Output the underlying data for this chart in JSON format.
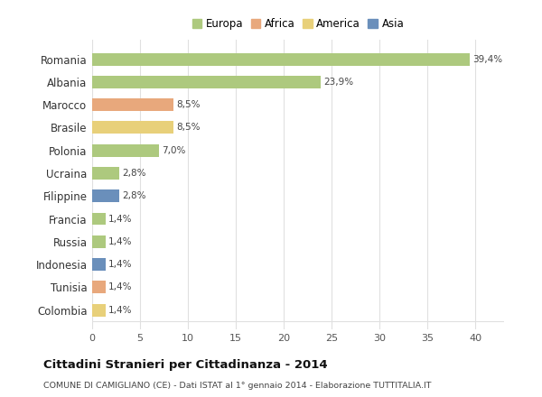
{
  "countries": [
    "Romania",
    "Albania",
    "Marocco",
    "Brasile",
    "Polonia",
    "Ucraina",
    "Filippine",
    "Francia",
    "Russia",
    "Indonesia",
    "Tunisia",
    "Colombia"
  ],
  "values": [
    39.4,
    23.9,
    8.5,
    8.5,
    7.0,
    2.8,
    2.8,
    1.4,
    1.4,
    1.4,
    1.4,
    1.4
  ],
  "labels": [
    "39,4%",
    "23,9%",
    "8,5%",
    "8,5%",
    "7,0%",
    "2,8%",
    "2,8%",
    "1,4%",
    "1,4%",
    "1,4%",
    "1,4%",
    "1,4%"
  ],
  "colors": [
    "#adc97e",
    "#adc97e",
    "#e8a87c",
    "#e8d07a",
    "#adc97e",
    "#adc97e",
    "#6a8fbb",
    "#adc97e",
    "#adc97e",
    "#6a8fbb",
    "#e8a87c",
    "#e8d07a"
  ],
  "legend_labels": [
    "Europa",
    "Africa",
    "America",
    "Asia"
  ],
  "legend_colors": [
    "#adc97e",
    "#e8a87c",
    "#e8d07a",
    "#6a8fbb"
  ],
  "title": "Cittadini Stranieri per Cittadinanza - 2014",
  "subtitle": "COMUNE DI CAMIGLIANO (CE) - Dati ISTAT al 1° gennaio 2014 - Elaborazione TUTTITALIA.IT",
  "xlim": [
    0,
    43
  ],
  "xticks": [
    0,
    5,
    10,
    15,
    20,
    25,
    30,
    35,
    40
  ],
  "bg_color": "#ffffff",
  "grid_color": "#e0e0e0"
}
